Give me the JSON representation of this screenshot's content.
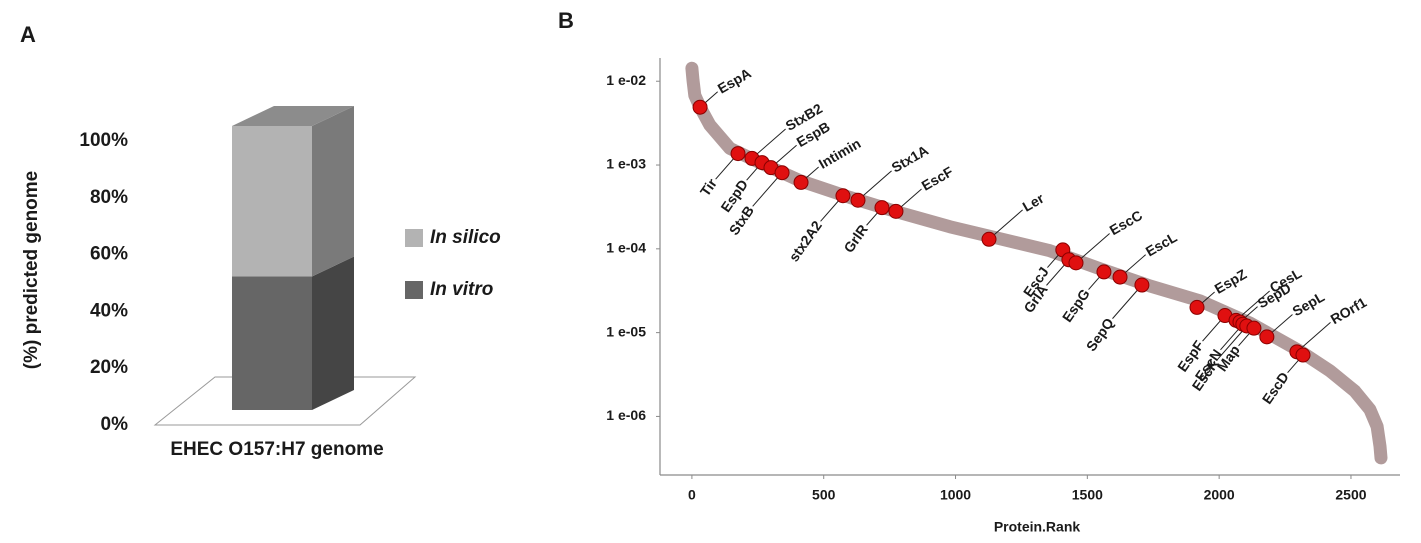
{
  "chart_data": [
    {
      "type": "bar",
      "stacked": true,
      "panel_label": "A",
      "ylabel": "(%) predicted genome",
      "categories": [
        "EHEC O157:H7 genome"
      ],
      "series": [
        {
          "name": "In vitro",
          "color": "#666666",
          "values": [
            47
          ]
        },
        {
          "name": "In silico",
          "color": "#b3b3b3",
          "values": [
            53
          ]
        }
      ],
      "ylim": [
        0,
        100
      ],
      "yticks": [
        {
          "value": 0,
          "label": "0%"
        },
        {
          "value": 20,
          "label": "20%"
        },
        {
          "value": 40,
          "label": "40%"
        },
        {
          "value": 60,
          "label": "60%"
        },
        {
          "value": 80,
          "label": "80%"
        },
        {
          "value": 100,
          "label": "100%"
        }
      ],
      "legend": "right"
    },
    {
      "type": "scatter",
      "panel_label": "B",
      "xlabel": "Protein.Rank",
      "yscale": "log",
      "xlim": [
        -121,
        2686
      ],
      "ylim": [
        2e-07,
        0.02
      ],
      "xticks": [
        0,
        500,
        1000,
        1500,
        2000,
        2500
      ],
      "yticks": [
        {
          "value": 0.01,
          "label": "1 e-02"
        },
        {
          "value": 0.001,
          "label": "1 e-03"
        },
        {
          "value": 0.0001,
          "label": "1 e-04"
        },
        {
          "value": 1e-05,
          "label": "1 e-05"
        },
        {
          "value": 1e-06,
          "label": "1 e-06"
        }
      ],
      "series": [
        {
          "color": "#a89090",
          "x": [
            0,
            4,
            11,
            31,
            68,
            144,
            258,
            410,
            600,
            789,
            979,
            1168,
            1358,
            1548,
            1738,
            1927,
            2117,
            2307,
            2420,
            2515,
            2572,
            2599,
            2610,
            2614
          ],
          "values": [
            0.0143,
            0.0103,
            0.0068,
            0.0049,
            0.003,
            0.00158,
            0.00107,
            0.00065,
            0.00041,
            0.00027,
            0.000183,
            0.000132,
            9.5e-05,
            5.8e-05,
            3.6e-05,
            2.4e-05,
            1.3e-05,
            6e-06,
            3.5e-06,
            2e-06,
            1.21e-06,
            7.6e-07,
            4.4e-07,
            3.2e-07
          ]
        },
        {
          "color": "#e01010",
          "labels": [
            "EspA",
            "Tir",
            "StxB2",
            "EspD",
            "EspB",
            "StxB",
            "Intimin",
            "stx2A2",
            "Stx1A",
            "GrlR",
            "EscF",
            "Ler",
            "EscJ",
            "GrlA",
            "EscC",
            "EspG",
            "EscL",
            "SepQ",
            "EspZ",
            "EspF",
            "CesL",
            "SepD",
            "EscN",
            "EscK",
            "Map",
            "SepL",
            "ROrf1",
            "EscD"
          ],
          "x": [
            31,
            175,
            228,
            266,
            300,
            342,
            414,
            573,
            630,
            721,
            774,
            1127,
            1407,
            1430,
            1457,
            1563,
            1624,
            1707,
            1916,
            2022,
            2064,
            2079,
            2090,
            2105,
            2132,
            2181,
            2295,
            2318
          ],
          "values": [
            0.0049,
            0.00137,
            0.0012,
            0.00107,
            0.00093,
            0.00081,
            0.00062,
            0.00043,
            0.00038,
            0.00031,
            0.00028,
            0.00013,
            9.7e-05,
            7.4e-05,
            6.8e-05,
            5.3e-05,
            4.6e-05,
            3.7e-05,
            2e-05,
            1.6e-05,
            1.4e-05,
            1.34e-05,
            1.26e-05,
            1.2e-05,
            1.13e-05,
            8.9e-06,
            5.9e-06,
            5.4e-06
          ]
        }
      ]
    }
  ]
}
